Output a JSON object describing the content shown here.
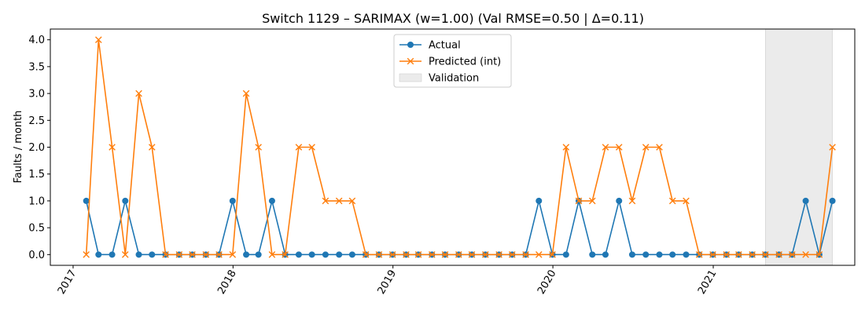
{
  "chart_data": {
    "type": "line",
    "title": "Switch 1129 – SARIMAX (w=1.00) (Val RMSE=0.50 | Δ=0.11)",
    "xlabel": "",
    "ylabel": "Faults / month",
    "xlim": [
      "2016-11-10",
      "2021-11-20"
    ],
    "ylim": [
      -0.2,
      4.2
    ],
    "y_ticks": [
      "0.0",
      "0.5",
      "1.0",
      "1.5",
      "2.0",
      "2.5",
      "3.0",
      "3.5",
      "4.0"
    ],
    "x_ticks": [
      {
        "date": "2017-01-01",
        "label": "2017"
      },
      {
        "date": "2018-01-01",
        "label": "2018"
      },
      {
        "date": "2019-01-01",
        "label": "2019"
      },
      {
        "date": "2020-01-01",
        "label": "2020"
      },
      {
        "date": "2021-01-01",
        "label": "2021"
      }
    ],
    "grid": false,
    "legend_position": "top-center",
    "validation_span": {
      "name": "Validation",
      "start": "2021-04-30",
      "end": "2021-09-30",
      "color": "#d3d3d3"
    },
    "x": [
      "2017-01-31",
      "2017-02-28",
      "2017-03-31",
      "2017-04-30",
      "2017-05-31",
      "2017-06-30",
      "2017-07-31",
      "2017-08-31",
      "2017-09-30",
      "2017-10-31",
      "2017-11-30",
      "2017-12-31",
      "2018-01-31",
      "2018-02-28",
      "2018-03-31",
      "2018-04-30",
      "2018-05-31",
      "2018-06-30",
      "2018-07-31",
      "2018-08-31",
      "2018-09-30",
      "2018-10-31",
      "2018-11-30",
      "2018-12-31",
      "2019-01-31",
      "2019-02-28",
      "2019-03-31",
      "2019-04-30",
      "2019-05-31",
      "2019-06-30",
      "2019-07-31",
      "2019-08-31",
      "2019-09-30",
      "2019-10-31",
      "2019-11-30",
      "2019-12-31",
      "2020-01-31",
      "2020-02-29",
      "2020-03-31",
      "2020-04-30",
      "2020-05-31",
      "2020-06-30",
      "2020-07-31",
      "2020-08-31",
      "2020-09-30",
      "2020-10-31",
      "2020-11-30",
      "2020-12-31",
      "2021-01-31",
      "2021-02-28",
      "2021-03-31",
      "2021-04-30",
      "2021-05-31",
      "2021-06-30",
      "2021-07-31",
      "2021-08-31",
      "2021-09-30"
    ],
    "series": [
      {
        "name": "Actual",
        "color": "#1f77b4",
        "marker": "circle",
        "values": [
          1,
          0,
          0,
          1,
          0,
          0,
          0,
          0,
          0,
          0,
          0,
          1,
          0,
          0,
          1,
          0,
          0,
          0,
          0,
          0,
          0,
          0,
          0,
          0,
          0,
          0,
          0,
          0,
          0,
          0,
          0,
          0,
          0,
          0,
          1,
          0,
          0,
          1,
          0,
          0,
          1,
          0,
          0,
          0,
          0,
          0,
          0,
          0,
          0,
          0,
          0,
          0,
          0,
          0,
          1,
          0,
          1
        ]
      },
      {
        "name": "Predicted (int)",
        "color": "#ff7f0e",
        "marker": "x",
        "values": [
          0,
          4,
          2,
          0,
          3,
          2,
          0,
          0,
          0,
          0,
          0,
          0,
          3,
          2,
          0,
          0,
          2,
          2,
          1,
          1,
          1,
          0,
          0,
          0,
          0,
          0,
          0,
          0,
          0,
          0,
          0,
          0,
          0,
          0,
          0,
          0,
          2,
          1,
          1,
          2,
          2,
          1,
          2,
          2,
          1,
          1,
          0,
          0,
          0,
          0,
          0,
          0,
          0,
          0,
          0,
          0,
          2
        ]
      }
    ]
  }
}
